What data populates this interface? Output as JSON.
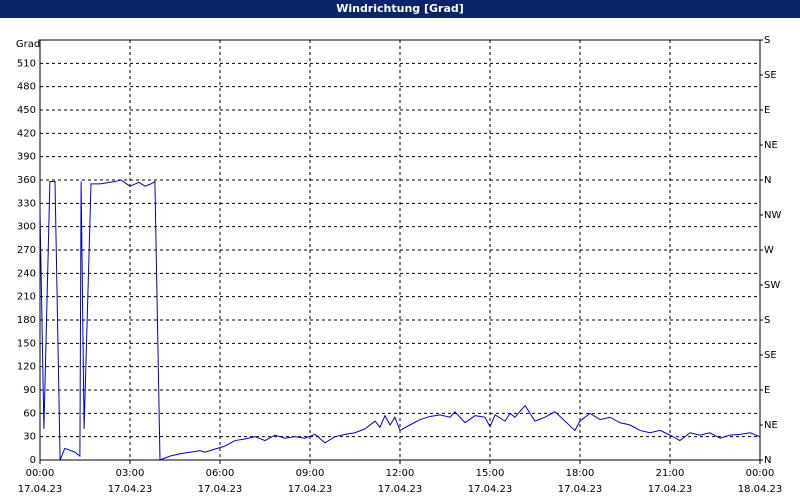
{
  "chart_data": {
    "type": "line",
    "title": "Windrichtung [Grad]",
    "y_label": "Grad",
    "grid": true,
    "xlim": [
      0,
      24
    ],
    "ylim": [
      0,
      540
    ],
    "y2lim": [
      0,
      540
    ],
    "xticks": [
      {
        "value": 0,
        "label": "00:00",
        "date": "17.04.23"
      },
      {
        "value": 3,
        "label": "03:00",
        "date": "17.04.23"
      },
      {
        "value": 6,
        "label": "06:00",
        "date": "17.04.23"
      },
      {
        "value": 9,
        "label": "09:00",
        "date": "17.04.23"
      },
      {
        "value": 12,
        "label": "12:00",
        "date": "17.04.23"
      },
      {
        "value": 15,
        "label": "15:00",
        "date": "17.04.23"
      },
      {
        "value": 18,
        "label": "18:00",
        "date": "17.04.23"
      },
      {
        "value": 21,
        "label": "21:00",
        "date": "17.04.23"
      },
      {
        "value": 24,
        "label": "00:00",
        "date": "18.04.23"
      }
    ],
    "yticks": [
      0,
      30,
      60,
      90,
      120,
      150,
      180,
      210,
      240,
      270,
      300,
      330,
      360,
      390,
      420,
      450,
      480,
      510
    ],
    "y2ticks": [
      {
        "value": 0,
        "label": "N"
      },
      {
        "value": 45,
        "label": "NE"
      },
      {
        "value": 90,
        "label": "E"
      },
      {
        "value": 135,
        "label": "SE"
      },
      {
        "value": 180,
        "label": "S"
      },
      {
        "value": 225,
        "label": "SW"
      },
      {
        "value": 270,
        "label": "W"
      },
      {
        "value": 315,
        "label": "NW"
      },
      {
        "value": 360,
        "label": "N"
      },
      {
        "value": 405,
        "label": "NE"
      },
      {
        "value": 450,
        "label": "E"
      },
      {
        "value": 495,
        "label": "SE"
      },
      {
        "value": 540,
        "label": "S"
      }
    ],
    "series": [
      {
        "color": "#0000c8",
        "x": [
          0,
          0.13,
          0.33,
          0.5,
          0.67,
          0.83,
          1.17,
          1.33,
          1.37,
          1.47,
          1.7,
          2.0,
          2.5,
          2.7,
          3.0,
          3.3,
          3.5,
          3.7,
          3.83,
          4.0,
          4.33,
          4.67,
          5.0,
          5.33,
          5.5,
          5.83,
          6.17,
          6.5,
          6.83,
          7.17,
          7.5,
          7.83,
          8.17,
          8.5,
          8.83,
          9.17,
          9.5,
          9.83,
          10.17,
          10.5,
          10.83,
          11.17,
          11.33,
          11.5,
          11.67,
          11.83,
          12.0,
          12.33,
          12.67,
          13.0,
          13.33,
          13.67,
          13.83,
          14.17,
          14.5,
          14.83,
          15.0,
          15.17,
          15.5,
          15.67,
          15.83,
          16.17,
          16.5,
          16.83,
          17.17,
          17.5,
          17.83,
          18.0,
          18.33,
          18.67,
          19.0,
          19.33,
          19.67,
          20.0,
          20.33,
          20.67,
          21.0,
          21.33,
          21.67,
          22.0,
          22.33,
          22.67,
          23.0,
          23.33,
          23.67,
          24.0
        ],
        "values": [
          320,
          40,
          358,
          358,
          0,
          15,
          10,
          5,
          358,
          40,
          355,
          355,
          358,
          360,
          352,
          357,
          352,
          355,
          358,
          0,
          5,
          8,
          10,
          12,
          10,
          14,
          18,
          25,
          27,
          30,
          25,
          32,
          28,
          30,
          28,
          33,
          22,
          30,
          33,
          35,
          40,
          50,
          42,
          57,
          45,
          55,
          38,
          45,
          52,
          56,
          58,
          55,
          62,
          48,
          57,
          55,
          43,
          58,
          50,
          60,
          55,
          70,
          50,
          55,
          62,
          50,
          38,
          50,
          60,
          52,
          55,
          48,
          45,
          38,
          35,
          38,
          32,
          25,
          35,
          32,
          35,
          28,
          32,
          33,
          35,
          30
        ]
      }
    ]
  }
}
